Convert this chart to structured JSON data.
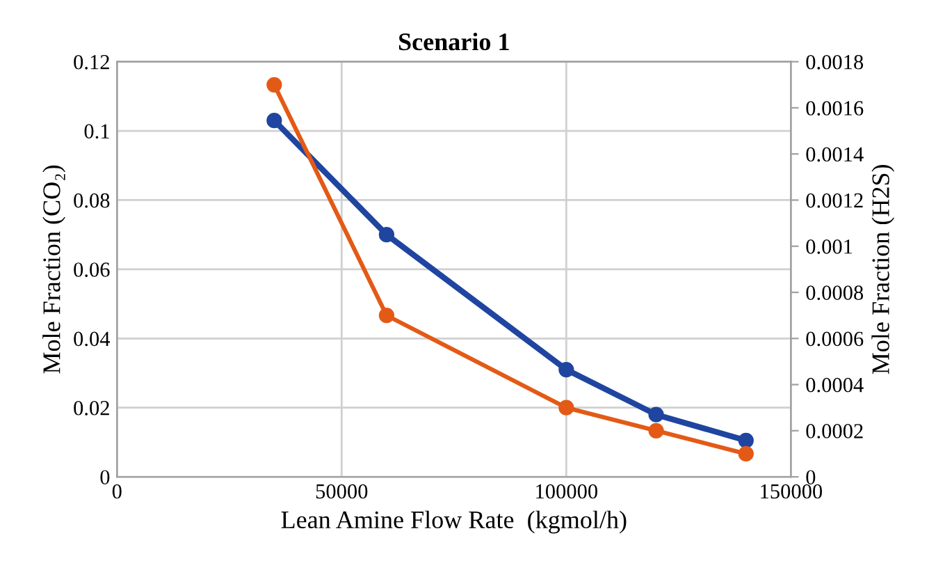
{
  "chart_data": {
    "type": "line",
    "title": "Scenario 1",
    "xlabel": "Lean Amine Flow Rate  (kgmol/h)",
    "ylabel": "Mole Fraction (CO₂)",
    "y2label": "Mole Fraction (H2S)",
    "x": [
      35000,
      60000,
      100000,
      120000,
      140000
    ],
    "series": [
      {
        "color": "#1f45a0",
        "values": [
          0.103,
          0.07,
          0.031,
          0.018,
          0.0105
        ]
      },
      {
        "color": "#e35a16",
        "values": [
          0.0017,
          0.0007,
          0.0003,
          0.0002,
          0.0001
        ],
        "axis": "y2"
      }
    ],
    "xlim": [
      0,
      150000
    ],
    "xticks": [
      0,
      50000,
      100000,
      150000
    ],
    "ylim": [
      0,
      0.12
    ],
    "yticks": [
      0,
      0.02,
      0.04,
      0.06,
      0.08,
      0.1,
      0.12
    ],
    "y2lim": [
      0,
      0.0018
    ],
    "y2ticks": [
      0,
      0.0002,
      0.0004,
      0.0006,
      0.0008,
      0.001,
      0.0012,
      0.0014,
      0.0016,
      0.0018
    ],
    "grid": true,
    "marker": "circle",
    "line_style": "solid"
  }
}
